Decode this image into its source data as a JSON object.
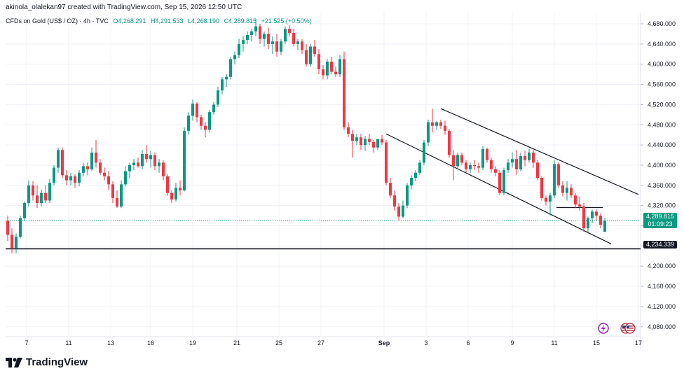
{
  "header": {
    "attribution": "akinola_olalekan97 created with TradingView.com, Sep 15, 2026 12:50 UTC",
    "symbol": "CFDs on Gold (US$ / OZ) · 4h · TVC",
    "open": "O4,268.291",
    "high": "H4,291.533",
    "low": "L4,268.190",
    "close": "C4,289.815",
    "change": "+21.525 (+0.50%)"
  },
  "brand": {
    "name": "TradingView"
  },
  "price_tag": {
    "value": "4,289.815",
    "countdown": "01:09:23"
  },
  "level_tag": {
    "value": "4,234.339"
  },
  "icons": [
    "lightning-icon",
    "us-flag-icon"
  ],
  "colors": {
    "up": "#089981",
    "down": "#f23645",
    "line": "#131722",
    "grid": "#f0f3fa"
  },
  "chart_data": {
    "type": "candlestick",
    "title": "",
    "timeframe": "4h",
    "x_tick_labels": [
      "7",
      "11",
      "13",
      "16",
      "19",
      "21",
      "25",
      "27",
      "Sep",
      "3",
      "6",
      "9",
      "11",
      "15",
      "17"
    ],
    "y_tick_labels": [
      "4,080.000",
      "4,120.000",
      "4,160.000",
      "4,200.000",
      "4,240.000",
      "4,280.000",
      "4,320.000",
      "4,360.000",
      "4,400.000",
      "4,440.000",
      "4,480.000",
      "4,520.000",
      "4,560.000",
      "4,600.000",
      "4,640.000",
      "4,680.000"
    ],
    "ylim": [
      4060,
      4700
    ],
    "xlim": [
      0,
      150
    ],
    "x_ticks": [
      {
        "label": "7",
        "i": 4.5
      },
      {
        "label": "11",
        "i": 14.5
      },
      {
        "label": "13",
        "i": 24.5
      },
      {
        "label": "16",
        "i": 34
      },
      {
        "label": "19",
        "i": 44
      },
      {
        "label": "21",
        "i": 54.5
      },
      {
        "label": "25",
        "i": 64.5
      },
      {
        "label": "27",
        "i": 74.5
      },
      {
        "label": "Sep",
        "i": 89.5
      },
      {
        "label": "3",
        "i": 99.5
      },
      {
        "label": "6",
        "i": 109.5
      },
      {
        "label": "9",
        "i": 120
      },
      {
        "label": "11",
        "i": 130
      },
      {
        "label": "15",
        "i": 140
      },
      {
        "label": "17",
        "i": 150
      }
    ],
    "candles": [
      [
        4290,
        4300,
        4250,
        4262
      ],
      [
        4262,
        4275,
        4225,
        4235
      ],
      [
        4235,
        4265,
        4225,
        4258
      ],
      [
        4258,
        4300,
        4255,
        4295
      ],
      [
        4295,
        4328,
        4290,
        4325
      ],
      [
        4325,
        4370,
        4318,
        4360
      ],
      [
        4360,
        4368,
        4330,
        4340
      ],
      [
        4340,
        4360,
        4315,
        4325
      ],
      [
        4325,
        4352,
        4318,
        4345
      ],
      [
        4345,
        4360,
        4325,
        4330
      ],
      [
        4330,
        4372,
        4325,
        4365
      ],
      [
        4365,
        4400,
        4360,
        4395
      ],
      [
        4395,
        4435,
        4385,
        4430
      ],
      [
        4430,
        4435,
        4375,
        4380
      ],
      [
        4380,
        4390,
        4360,
        4370
      ],
      [
        4370,
        4385,
        4360,
        4378
      ],
      [
        4378,
        4382,
        4355,
        4365
      ],
      [
        4365,
        4390,
        4358,
        4385
      ],
      [
        4385,
        4405,
        4378,
        4398
      ],
      [
        4398,
        4405,
        4380,
        4392
      ],
      [
        4392,
        4435,
        4388,
        4425
      ],
      [
        4425,
        4450,
        4395,
        4405
      ],
      [
        4405,
        4412,
        4380,
        4385
      ],
      [
        4385,
        4395,
        4370,
        4378
      ],
      [
        4378,
        4388,
        4350,
        4362
      ],
      [
        4362,
        4368,
        4325,
        4335
      ],
      [
        4335,
        4350,
        4315,
        4318
      ],
      [
        4318,
        4370,
        4315,
        4362
      ],
      [
        4362,
        4398,
        4358,
        4388
      ],
      [
        4388,
        4405,
        4375,
        4400
      ],
      [
        4400,
        4412,
        4390,
        4405
      ],
      [
        4405,
        4415,
        4395,
        4398
      ],
      [
        4398,
        4430,
        4392,
        4422
      ],
      [
        4422,
        4440,
        4405,
        4412
      ],
      [
        4412,
        4428,
        4395,
        4420
      ],
      [
        4420,
        4425,
        4390,
        4398
      ],
      [
        4398,
        4412,
        4385,
        4405
      ],
      [
        4405,
        4410,
        4370,
        4378
      ],
      [
        4378,
        4382,
        4340,
        4345
      ],
      [
        4345,
        4350,
        4325,
        4332
      ],
      [
        4332,
        4365,
        4328,
        4355
      ],
      [
        4355,
        4370,
        4340,
        4350
      ],
      [
        4350,
        4475,
        4348,
        4468
      ],
      [
        4468,
        4505,
        4460,
        4498
      ],
      [
        4498,
        4530,
        4488,
        4522
      ],
      [
        4522,
        4525,
        4485,
        4495
      ],
      [
        4495,
        4500,
        4470,
        4478
      ],
      [
        4478,
        4485,
        4455,
        4470
      ],
      [
        4470,
        4510,
        4465,
        4505
      ],
      [
        4505,
        4525,
        4500,
        4520
      ],
      [
        4520,
        4555,
        4515,
        4548
      ],
      [
        4548,
        4575,
        4540,
        4570
      ],
      [
        4570,
        4580,
        4555,
        4575
      ],
      [
        4575,
        4615,
        4570,
        4610
      ],
      [
        4610,
        4625,
        4600,
        4618
      ],
      [
        4618,
        4650,
        4612,
        4640
      ],
      [
        4640,
        4655,
        4625,
        4648
      ],
      [
        4648,
        4665,
        4640,
        4658
      ],
      [
        4658,
        4670,
        4645,
        4665
      ],
      [
        4665,
        4690,
        4655,
        4675
      ],
      [
        4675,
        4680,
        4640,
        4650
      ],
      [
        4650,
        4665,
        4635,
        4660
      ],
      [
        4660,
        4672,
        4630,
        4640
      ],
      [
        4640,
        4655,
        4620,
        4645
      ],
      [
        4645,
        4660,
        4615,
        4625
      ],
      [
        4625,
        4650,
        4618,
        4645
      ],
      [
        4645,
        4675,
        4640,
        4670
      ],
      [
        4670,
        4678,
        4655,
        4662
      ],
      [
        4662,
        4670,
        4635,
        4640
      ],
      [
        4640,
        4650,
        4628,
        4645
      ],
      [
        4645,
        4650,
        4620,
        4628
      ],
      [
        4628,
        4640,
        4595,
        4600
      ],
      [
        4600,
        4640,
        4595,
        4635
      ],
      [
        4635,
        4648,
        4615,
        4620
      ],
      [
        4620,
        4630,
        4580,
        4590
      ],
      [
        4590,
        4598,
        4570,
        4578
      ],
      [
        4578,
        4610,
        4570,
        4605
      ],
      [
        4605,
        4615,
        4580,
        4585
      ],
      [
        4585,
        4595,
        4575,
        4580
      ],
      [
        4580,
        4618,
        4575,
        4610
      ],
      [
        4610,
        4625,
        4470,
        4475
      ],
      [
        4475,
        4485,
        4455,
        4462
      ],
      [
        4462,
        4470,
        4415,
        4448
      ],
      [
        4448,
        4462,
        4440,
        4455
      ],
      [
        4455,
        4462,
        4430,
        4440
      ],
      [
        4440,
        4458,
        4428,
        4452
      ],
      [
        4452,
        4462,
        4440,
        4446
      ],
      [
        4446,
        4450,
        4425,
        4435
      ],
      [
        4435,
        4448,
        4430,
        4452
      ],
      [
        4452,
        4460,
        4440,
        4445
      ],
      [
        4445,
        4450,
        4360,
        4365
      ],
      [
        4365,
        4375,
        4335,
        4340
      ],
      [
        4340,
        4350,
        4310,
        4318
      ],
      [
        4318,
        4325,
        4290,
        4298
      ],
      [
        4298,
        4330,
        4295,
        4320
      ],
      [
        4320,
        4365,
        4315,
        4360
      ],
      [
        4360,
        4380,
        4352,
        4375
      ],
      [
        4375,
        4390,
        4368,
        4385
      ],
      [
        4385,
        4410,
        4380,
        4405
      ],
      [
        4405,
        4450,
        4400,
        4445
      ],
      [
        4445,
        4490,
        4438,
        4485
      ],
      [
        4485,
        4512,
        4465,
        4478
      ],
      [
        4478,
        4488,
        4470,
        4485
      ],
      [
        4485,
        4490,
        4472,
        4478
      ],
      [
        4478,
        4488,
        4460,
        4468
      ],
      [
        4468,
        4472,
        4415,
        4420
      ],
      [
        4420,
        4430,
        4370,
        4398
      ],
      [
        4398,
        4425,
        4392,
        4420
      ],
      [
        4420,
        4425,
        4400,
        4405
      ],
      [
        4405,
        4410,
        4385,
        4392
      ],
      [
        4392,
        4405,
        4385,
        4400
      ],
      [
        4400,
        4410,
        4390,
        4398
      ],
      [
        4398,
        4405,
        4385,
        4395
      ],
      [
        4395,
        4438,
        4390,
        4432
      ],
      [
        4432,
        4435,
        4405,
        4410
      ],
      [
        4410,
        4415,
        4385,
        4392
      ],
      [
        4392,
        4398,
        4378,
        4385
      ],
      [
        4385,
        4390,
        4340,
        4345
      ],
      [
        4345,
        4395,
        4340,
        4390
      ],
      [
        4390,
        4412,
        4385,
        4405
      ],
      [
        4405,
        4425,
        4395,
        4412
      ],
      [
        4412,
        4430,
        4380,
        4392
      ],
      [
        4392,
        4425,
        4388,
        4418
      ],
      [
        4418,
        4428,
        4398,
        4410
      ],
      [
        4410,
        4432,
        4405,
        4425
      ],
      [
        4425,
        4430,
        4395,
        4405
      ],
      [
        4405,
        4410,
        4370,
        4375
      ],
      [
        4375,
        4378,
        4330,
        4335
      ],
      [
        4335,
        4340,
        4320,
        4328
      ],
      [
        4328,
        4345,
        4300,
        4340
      ],
      [
        4340,
        4410,
        4335,
        4402
      ],
      [
        4402,
        4405,
        4355,
        4360
      ],
      [
        4360,
        4368,
        4338,
        4345
      ],
      [
        4345,
        4368,
        4330,
        4355
      ],
      [
        4355,
        4362,
        4335,
        4340
      ],
      [
        4340,
        4345,
        4315,
        4322
      ],
      [
        4322,
        4338,
        4310,
        4318
      ],
      [
        4318,
        4325,
        4268,
        4275
      ],
      [
        4275,
        4298,
        4268,
        4295
      ],
      [
        4295,
        4312,
        4285,
        4308
      ],
      [
        4308,
        4312,
        4290,
        4300
      ],
      [
        4300,
        4305,
        4275,
        4282
      ],
      [
        4268,
        4295,
        4268,
        4290
      ]
    ],
    "overlays": {
      "upper_channel": [
        [
          103,
          4512
        ],
        [
          150,
          4342
        ]
      ],
      "lower_channel": [
        [
          90,
          4462
        ],
        [
          143.5,
          4244
        ]
      ],
      "resistance_segment": [
        [
          130.5,
          4316
        ],
        [
          141.5,
          4316
        ]
      ],
      "support_line": [
        [
          0,
          4234.339
        ],
        [
          151.5,
          4234.339
        ]
      ],
      "last_price_line": 4289.815
    }
  }
}
